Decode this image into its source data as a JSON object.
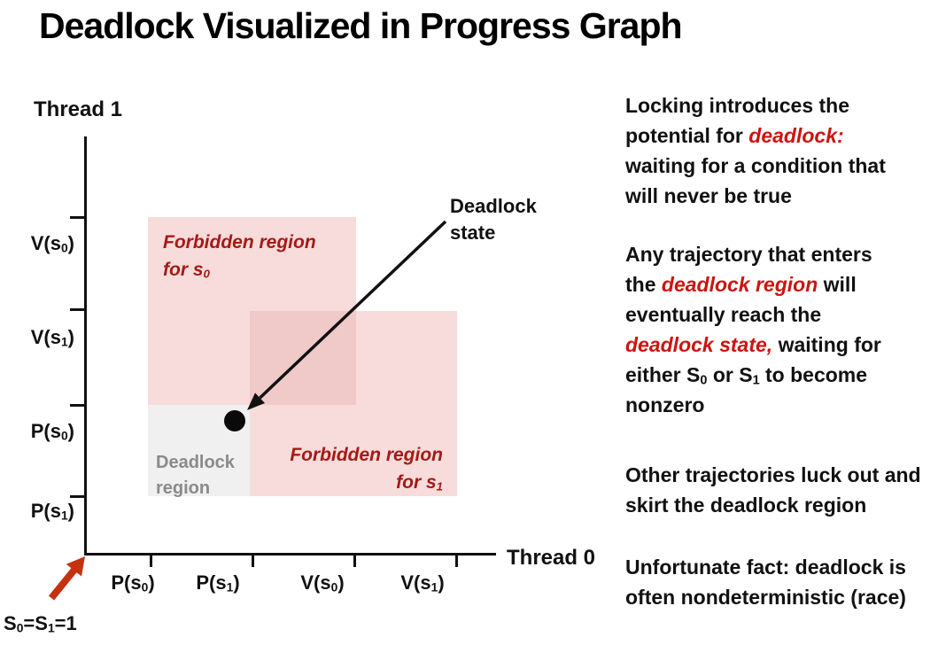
{
  "title": "Deadlock Visualized in Progress Graph",
  "graph": {
    "y_axis_title": "Thread 1",
    "x_axis_title": "Thread 0",
    "y_tick_labels": [
      "V(s_{0})",
      "V(s_{1})",
      "P(s_{0})",
      "P(s_{1})"
    ],
    "x_tick_labels": [
      "P(s_{0})",
      "P(s_{1})",
      "V(s_{0})",
      "V(s_{1})"
    ],
    "regions": {
      "forbidden_s0": {
        "label": "Forbidden region\nfor s_{0}",
        "x_span_ticks": [
          1,
          3
        ],
        "y_span_ticks": [
          2,
          4
        ]
      },
      "forbidden_s1": {
        "label": "Forbidden region\nfor s_{1}",
        "x_span_ticks": [
          2,
          4
        ],
        "y_span_ticks": [
          1,
          3
        ]
      },
      "deadlock": {
        "label": "Deadlock\nregion",
        "x_span_ticks": [
          1,
          2
        ],
        "y_span_ticks": [
          1,
          2
        ]
      }
    },
    "deadlock_state_label": "Deadlock\nstate",
    "origin_label": "S_{0}=S_{1}=1"
  },
  "notes": [
    "Locking introduces  the\npotential for !{deadlock:}!\nwaiting for a condition that\nwill never be true",
    "Any trajectory that enters\nthe !{deadlock region}! will\neventually reach the\n!{deadlock state,}! waiting for\neither S_{0} or S_{1} to become\nnonzero",
    "Other trajectories luck out and\nskirt the deadlock region",
    "Unfortunate fact: deadlock is\noften nondeterministic (race)"
  ],
  "colors": {
    "text": "#111111",
    "axis": "#111111",
    "em_red": "#cc1410",
    "forbidden_red": "#a51a15",
    "region_pink": "#f7dcdb",
    "region_overlap": "#efcac8",
    "deadlock_bg": "#f0f0f0",
    "deadlock_text": "#8a8a8a",
    "arrow_red": "#c53210",
    "dot_black": "#0a0a0a"
  }
}
